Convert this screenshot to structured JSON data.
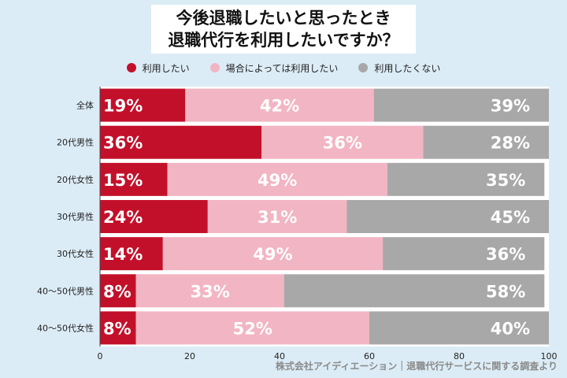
{
  "title": {
    "line1": "今後退職したいと思ったとき",
    "line2": "退職代行を利用したいですか？"
  },
  "legend": [
    {
      "label": "利用したい",
      "color": "#c3102a"
    },
    {
      "label": "場合によっては利用したい",
      "color": "#f2b5c3"
    },
    {
      "label": "利用したくない",
      "color": "#a8a8a8"
    }
  ],
  "footer": "株式会社アイディエーション｜退職代行サービスに関する調査より",
  "chart_data": {
    "type": "bar",
    "orientation": "horizontal",
    "stacked": true,
    "title": "今後退職したいと思ったとき 退職代行を利用したいですか？",
    "categories": [
      "全体",
      "20代男性",
      "20代女性",
      "30代男性",
      "30代女性",
      "40～50代男性",
      "40～50代女性"
    ],
    "series": [
      {
        "name": "利用したい",
        "color": "#c3102a",
        "values": [
          19,
          36,
          15,
          24,
          14,
          8,
          8
        ]
      },
      {
        "name": "場合によっては利用したい",
        "color": "#f2b5c3",
        "values": [
          42,
          36,
          49,
          31,
          49,
          33,
          52
        ]
      },
      {
        "name": "利用したくない",
        "color": "#a8a8a8",
        "values": [
          39,
          28,
          35,
          45,
          36,
          58,
          40
        ]
      }
    ],
    "xlim": [
      0,
      100
    ],
    "xticks": [
      0,
      20,
      40,
      60,
      80,
      100
    ],
    "value_suffix": "%",
    "legend_position": "top",
    "grid": false
  }
}
